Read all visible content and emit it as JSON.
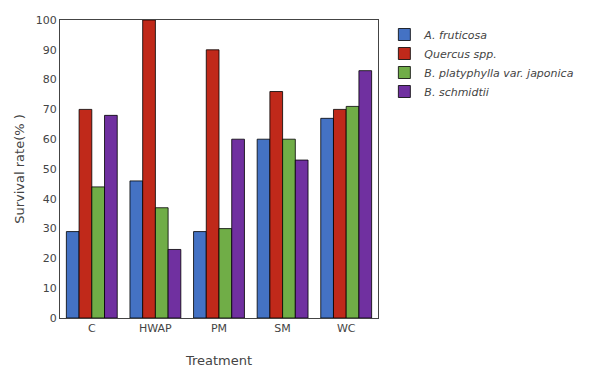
{
  "chart_data": {
    "type": "bar",
    "xlabel": "Treatment",
    "ylabel": "Survival rate(% )",
    "categories": [
      "C",
      "HWAP",
      "PM",
      "SM",
      "WC"
    ],
    "series": [
      {
        "name": "A. fruticosa",
        "color": "#4472C4",
        "values": [
          29,
          46,
          29,
          60,
          67
        ]
      },
      {
        "name": "Quercus spp.",
        "color": "#C0291A",
        "values": [
          70,
          100,
          90,
          76,
          70
        ]
      },
      {
        "name": "B. platyphylla var. japonica",
        "color": "#70AD47",
        "values": [
          44,
          37,
          30,
          60,
          71
        ]
      },
      {
        "name": "B. schmidtii",
        "color": "#7030A0",
        "values": [
          68,
          23,
          60,
          53,
          83
        ]
      }
    ],
    "ylim": [
      0,
      100
    ],
    "yticks": [
      0,
      10,
      20,
      30,
      40,
      50,
      60,
      70,
      80,
      90,
      100
    ],
    "grid": false,
    "legend": "upper right"
  }
}
